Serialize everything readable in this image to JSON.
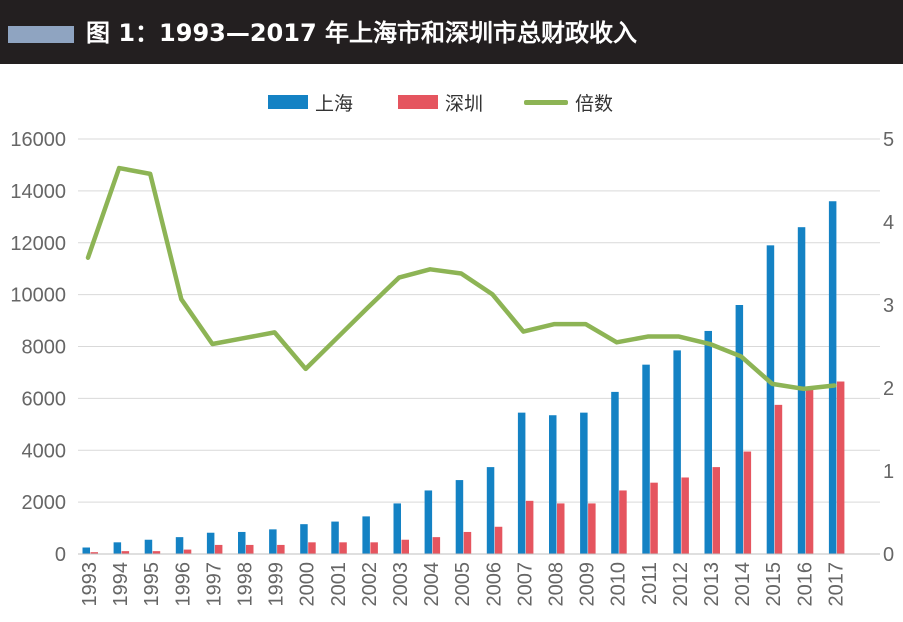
{
  "header": {
    "title": "图 1：1993—2017 年上海市和深圳市总财政收入"
  },
  "colors": {
    "header_bg": "#231f20",
    "accent": "#8fa4c1",
    "shanghai": "#1482c4",
    "shenzhen": "#e5555f",
    "ratio": "#8db455",
    "grid": "#d9d9d9"
  },
  "legend": [
    {
      "label": "上海",
      "kind": "bar",
      "color": "#1482c4"
    },
    {
      "label": "深圳",
      "kind": "bar",
      "color": "#e5555f"
    },
    {
      "label": "倍数",
      "kind": "line",
      "color": "#8db455"
    }
  ],
  "chart_data": {
    "type": "bar",
    "title": "图 1：1993—2017 年上海市和深圳市总财政收入",
    "categories": [
      "1993",
      "1994",
      "1995",
      "1996",
      "1997",
      "1998",
      "1999",
      "2000",
      "2001",
      "2002",
      "2003",
      "2004",
      "2005",
      "2006",
      "2007",
      "2008",
      "2009",
      "2010",
      "2011",
      "2012",
      "2013",
      "2014",
      "2015",
      "2016",
      "2017"
    ],
    "series": [
      {
        "name": "上海",
        "type": "bar",
        "axis": "left",
        "values": [
          250,
          450,
          550,
          650,
          820,
          850,
          950,
          1150,
          1250,
          1450,
          1950,
          2450,
          2850,
          3350,
          5450,
          5350,
          5450,
          6250,
          7300,
          7850,
          8600,
          9600,
          11900,
          12600,
          13600
        ]
      },
      {
        "name": "深圳",
        "type": "bar",
        "axis": "left",
        "values": [
          70,
          110,
          110,
          170,
          350,
          350,
          350,
          450,
          450,
          450,
          550,
          650,
          850,
          1050,
          2050,
          1950,
          1950,
          2450,
          2750,
          2950,
          3350,
          3950,
          5750,
          6350,
          6650
        ]
      },
      {
        "name": "倍数",
        "type": "line",
        "axis": "right",
        "values": [
          3.57,
          4.65,
          4.58,
          3.07,
          2.53,
          2.6,
          2.67,
          2.23,
          2.6,
          2.97,
          3.33,
          3.43,
          3.38,
          3.13,
          2.68,
          2.77,
          2.77,
          2.55,
          2.62,
          2.62,
          2.53,
          2.38,
          2.05,
          1.99,
          2.03
        ]
      }
    ],
    "y_left": {
      "min": 0,
      "max": 16000,
      "ticks": [
        0,
        2000,
        4000,
        6000,
        8000,
        10000,
        12000,
        14000,
        16000
      ]
    },
    "y_right": {
      "min": 0,
      "max": 5,
      "ticks": [
        0,
        1,
        2,
        3,
        4,
        5
      ]
    },
    "grid": true,
    "legend_position": "top-center",
    "xlabel": "",
    "ylabel": ""
  }
}
